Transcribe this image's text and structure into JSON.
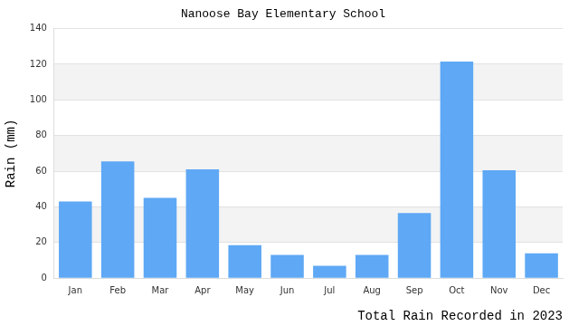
{
  "chart_data": {
    "type": "bar",
    "title": "Nanoose Bay Elementary School",
    "ylabel": "Rain (mm)",
    "xlabel": "Total Rain Recorded in 2023",
    "categories": [
      "Jan",
      "Feb",
      "Mar",
      "Apr",
      "May",
      "Jun",
      "Jul",
      "Aug",
      "Sep",
      "Oct",
      "Nov",
      "Dec"
    ],
    "values": [
      43,
      65.5,
      45,
      61,
      18.5,
      13,
      7,
      13,
      36.5,
      121.5,
      60.5,
      14
    ],
    "color": "#5ea8f5",
    "ylim": [
      0,
      140
    ],
    "yticks": [
      0,
      20,
      40,
      60,
      80,
      100,
      120,
      140
    ],
    "grid": true
  }
}
